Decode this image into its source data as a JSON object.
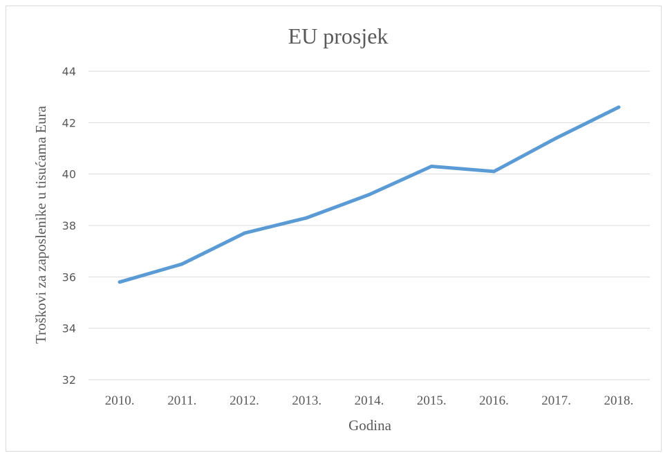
{
  "chart_data": {
    "type": "line",
    "title": "EU prosjek",
    "xlabel": "Godina",
    "ylabel": "Troškovi za zaposlenike u tisućama Eura",
    "categories": [
      "2010.",
      "2011.",
      "2012.",
      "2013.",
      "2014.",
      "2015.",
      "2016.",
      "2017.",
      "2018."
    ],
    "series": [
      {
        "values": [
          35.8,
          36.5,
          37.7,
          38.3,
          39.2,
          40.3,
          40.1,
          41.4,
          42.6
        ]
      }
    ],
    "ylim": [
      32,
      44
    ],
    "yticks": [
      32,
      34,
      36,
      38,
      40,
      42,
      44
    ],
    "grid": true,
    "legend": "none",
    "colors": {
      "line": "#5b9bd5",
      "grid": "#d9d9d9",
      "text": "#595959"
    }
  }
}
